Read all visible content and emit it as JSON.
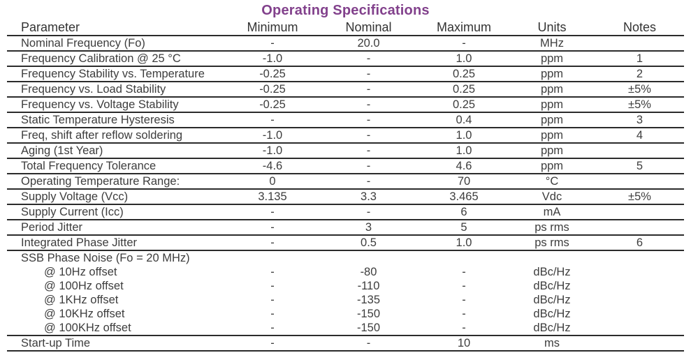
{
  "title": "Operating Specifications",
  "colors": {
    "title_accent": "#82418c",
    "body_text": "#3d3d3d",
    "rule": "#2b2b2b",
    "background": "#ffffff"
  },
  "table": {
    "headers": [
      "Parameter",
      "Minimum",
      "Nominal",
      "Maximum",
      "Units",
      "Notes"
    ],
    "rows": [
      {
        "cells": [
          "Nominal Frequency (Fo)",
          "-",
          "20.0",
          "-",
          "MHz",
          ""
        ],
        "indent": false,
        "rule": true
      },
      {
        "cells": [
          "Frequency Calibration @ 25 °C",
          "-1.0",
          "-",
          "1.0",
          "ppm",
          "1"
        ],
        "indent": false,
        "rule": true
      },
      {
        "cells": [
          "Frequency Stability vs. Temperature",
          "-0.25",
          "-",
          "0.25",
          "ppm",
          "2"
        ],
        "indent": false,
        "rule": true
      },
      {
        "cells": [
          "Frequency vs. Load Stability",
          "-0.25",
          "-",
          "0.25",
          "ppm",
          "±5%"
        ],
        "indent": false,
        "rule": true
      },
      {
        "cells": [
          "Frequency vs. Voltage Stability",
          "-0.25",
          "-",
          "0.25",
          "ppm",
          "±5%"
        ],
        "indent": false,
        "rule": true
      },
      {
        "cells": [
          "Static Temperature Hysteresis",
          "-",
          "-",
          "0.4",
          "ppm",
          "3"
        ],
        "indent": false,
        "rule": true
      },
      {
        "cells": [
          "Freq, shift after reflow soldering",
          "-1.0",
          "-",
          "1.0",
          "ppm",
          "4"
        ],
        "indent": false,
        "rule": true
      },
      {
        "cells": [
          "Aging (1st Year)",
          "-1.0",
          "-",
          "1.0",
          "ppm",
          ""
        ],
        "indent": false,
        "rule": true
      },
      {
        "cells": [
          "Total Frequency Tolerance",
          "-4.6",
          "-",
          "4.6",
          "ppm",
          "5"
        ],
        "indent": false,
        "rule": true
      },
      {
        "cells": [
          "Operating Temperature Range:",
          "0",
          "-",
          "70",
          "°C",
          ""
        ],
        "indent": false,
        "rule": true
      },
      {
        "cells": [
          "Supply Voltage (Vcc)",
          "3.135",
          "3.3",
          "3.465",
          "Vdc",
          "±5%"
        ],
        "indent": false,
        "rule": true
      },
      {
        "cells": [
          "Supply Current (Icc)",
          "-",
          "-",
          "6",
          "mA",
          ""
        ],
        "indent": false,
        "rule": true
      },
      {
        "cells": [
          "Period Jitter",
          "-",
          "3",
          "5",
          "ps rms",
          ""
        ],
        "indent": false,
        "rule": true
      },
      {
        "cells": [
          "Integrated Phase Jitter",
          "-",
          "0.5",
          "1.0",
          "ps rms",
          "6"
        ],
        "indent": false,
        "rule": true
      },
      {
        "cells": [
          "SSB Phase Noise (Fo = 20 MHz)",
          "",
          "",
          "",
          "",
          ""
        ],
        "indent": false,
        "rule": false
      },
      {
        "cells": [
          "@ 10Hz offset",
          "-",
          "-80",
          "-",
          "dBc/Hz",
          ""
        ],
        "indent": true,
        "rule": false
      },
      {
        "cells": [
          "@ 100Hz offset",
          "-",
          "-110",
          "-",
          "dBc/Hz",
          ""
        ],
        "indent": true,
        "rule": false
      },
      {
        "cells": [
          "@ 1KHz offset",
          "-",
          "-135",
          "-",
          "dBc/Hz",
          ""
        ],
        "indent": true,
        "rule": false
      },
      {
        "cells": [
          "@ 10KHz offset",
          "-",
          "-150",
          "-",
          "dBc/Hz",
          ""
        ],
        "indent": true,
        "rule": false
      },
      {
        "cells": [
          "@ 100KHz offset",
          "-",
          "-150",
          "-",
          "dBc/Hz",
          ""
        ],
        "indent": true,
        "rule": true
      },
      {
        "cells": [
          "Start-up Time",
          "-",
          "-",
          "10",
          "ms",
          ""
        ],
        "indent": false,
        "rule": true
      }
    ]
  }
}
